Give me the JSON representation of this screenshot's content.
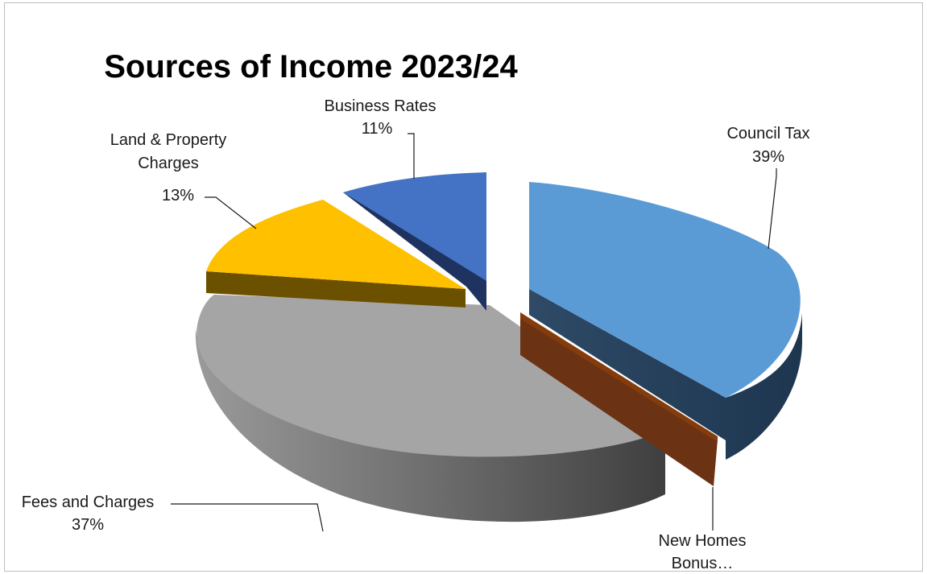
{
  "chart_data": {
    "type": "pie",
    "title": "Sources of Income 2023/24",
    "style": "3d-exploded",
    "slices": [
      {
        "name": "Council Tax",
        "value": 39,
        "label": "39%",
        "color": "#5b9bd5",
        "side_color": "#23405a"
      },
      {
        "name": "New Homes Bonus…",
        "value": 0.8,
        "label": "",
        "color": "#843c0c",
        "side_color": "#6b3214"
      },
      {
        "name": "Fees and Charges",
        "value": 37,
        "label": "37%",
        "color": "#a5a5a5",
        "side_color": "#7a7a7a"
      },
      {
        "name": "Land & Property Charges",
        "value": 13,
        "label": "13%",
        "color": "#ffc000",
        "side_color": "#6b5000"
      },
      {
        "name": "Business Rates",
        "value": 11,
        "label": "11%",
        "color": "#4472c4",
        "side_color": "#1e3360"
      }
    ],
    "legend": "none"
  }
}
